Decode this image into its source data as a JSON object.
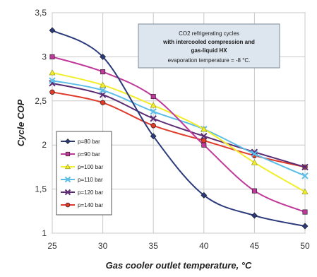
{
  "chart_data": {
    "type": "line",
    "title": "",
    "xlabel": "Gas cooler outlet temperature, °C",
    "ylabel": "Cycle COP",
    "x": [
      25,
      30,
      35,
      40,
      45,
      50
    ],
    "xlim": [
      25,
      50
    ],
    "ylim": [
      1,
      3.5
    ],
    "x_ticks": [
      "25",
      "30",
      "35",
      "40",
      "45",
      "50"
    ],
    "y_ticks": [
      "1",
      "1,5",
      "2",
      "2,5",
      "3",
      "3,5"
    ],
    "grid": true,
    "legend_position": "bottom-left",
    "series": [
      {
        "name": "p=80 bar",
        "color": "#2b3a7a",
        "marker": "diamond",
        "values": [
          3.3,
          3.0,
          2.1,
          1.43,
          1.2,
          1.08
        ]
      },
      {
        "name": "p=90 bar",
        "color": "#c0389a",
        "marker": "square",
        "values": [
          3.0,
          2.83,
          2.55,
          2.0,
          1.48,
          1.24
        ]
      },
      {
        "name": "p=100 bar",
        "color": "#f2ee2a",
        "marker": "triangle",
        "values": [
          2.82,
          2.68,
          2.45,
          2.18,
          1.8,
          1.47
        ]
      },
      {
        "name": "p=110 bar",
        "color": "#5bbde8",
        "marker": "x",
        "values": [
          2.73,
          2.62,
          2.38,
          2.18,
          1.9,
          1.65
        ]
      },
      {
        "name": "p=120 bar",
        "color": "#5a2a72",
        "marker": "x",
        "values": [
          2.7,
          2.57,
          2.3,
          2.1,
          1.92,
          1.75
        ]
      },
      {
        "name": "p=140 bar",
        "color": "#e03a2a",
        "marker": "circle",
        "values": [
          2.6,
          2.48,
          2.22,
          2.05,
          1.88,
          1.75
        ]
      }
    ],
    "annotation": {
      "lines": [
        "CO2 refrigerating cycles",
        "with intercooled compression and",
        "gas-liquid HX",
        "evaporation temperature = -8 °C."
      ]
    }
  }
}
